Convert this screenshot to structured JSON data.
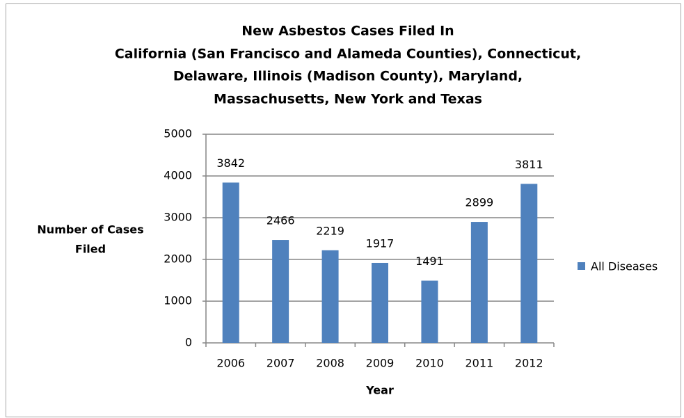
{
  "chart_data": {
    "type": "bar",
    "title": [
      "New Asbestos Cases Filed In",
      "California (San Francisco and Alameda Counties), Connecticut,",
      "Delaware, Illinois (Madison County), Maryland,",
      "Massachusetts, New York and Texas"
    ],
    "xlabel": "Year",
    "ylabel": [
      "Number of Cases",
      "Filed"
    ],
    "categories": [
      "2006",
      "2007",
      "2008",
      "2009",
      "2010",
      "2011",
      "2012"
    ],
    "series": [
      {
        "name": "All Diseases",
        "color": "#4f81bd",
        "values": [
          3842,
          2466,
          2219,
          1917,
          1491,
          2899,
          3811
        ]
      }
    ],
    "ylim": [
      0,
      5000
    ],
    "yticks": [
      0,
      1000,
      2000,
      3000,
      4000,
      5000
    ],
    "grid": true,
    "legend": "right",
    "data_labels": true
  }
}
